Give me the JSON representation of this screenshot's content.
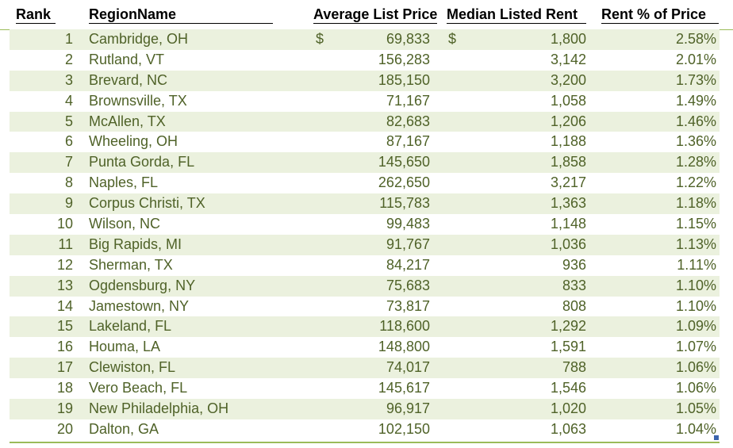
{
  "table": {
    "headers": {
      "rank": "Rank",
      "region": "RegionName",
      "price": "Average List Price",
      "rent": "Median Listed Rent",
      "pct": "Rent % of Price"
    },
    "currency_symbol": "$",
    "rows": [
      {
        "rank": "1",
        "region": "Cambridge, OH",
        "price": "69,833",
        "rent": "1,800",
        "pct": "2.58%"
      },
      {
        "rank": "2",
        "region": "Rutland, VT",
        "price": "156,283",
        "rent": "3,142",
        "pct": "2.01%"
      },
      {
        "rank": "3",
        "region": "Brevard, NC",
        "price": "185,150",
        "rent": "3,200",
        "pct": "1.73%"
      },
      {
        "rank": "4",
        "region": "Brownsville, TX",
        "price": "71,167",
        "rent": "1,058",
        "pct": "1.49%"
      },
      {
        "rank": "5",
        "region": "McAllen, TX",
        "price": "82,683",
        "rent": "1,206",
        "pct": "1.46%"
      },
      {
        "rank": "6",
        "region": "Wheeling, OH",
        "price": "87,167",
        "rent": "1,188",
        "pct": "1.36%"
      },
      {
        "rank": "7",
        "region": "Punta Gorda, FL",
        "price": "145,650",
        "rent": "1,858",
        "pct": "1.28%"
      },
      {
        "rank": "8",
        "region": "Naples, FL",
        "price": "262,650",
        "rent": "3,217",
        "pct": "1.22%"
      },
      {
        "rank": "9",
        "region": "Corpus Christi, TX",
        "price": "115,783",
        "rent": "1,363",
        "pct": "1.18%"
      },
      {
        "rank": "10",
        "region": "Wilson, NC",
        "price": "99,483",
        "rent": "1,148",
        "pct": "1.15%"
      },
      {
        "rank": "11",
        "region": "Big Rapids, MI",
        "price": "91,767",
        "rent": "1,036",
        "pct": "1.13%"
      },
      {
        "rank": "12",
        "region": "Sherman, TX",
        "price": "84,217",
        "rent": "936",
        "pct": "1.11%"
      },
      {
        "rank": "13",
        "region": "Ogdensburg, NY",
        "price": "75,683",
        "rent": "833",
        "pct": "1.10%"
      },
      {
        "rank": "14",
        "region": "Jamestown, NY",
        "price": "73,817",
        "rent": "808",
        "pct": "1.10%"
      },
      {
        "rank": "15",
        "region": "Lakeland, FL",
        "price": "118,600",
        "rent": "1,292",
        "pct": "1.09%"
      },
      {
        "rank": "16",
        "region": "Houma, LA",
        "price": "148,800",
        "rent": "1,591",
        "pct": "1.07%"
      },
      {
        "rank": "17",
        "region": "Clewiston, FL",
        "price": "74,017",
        "rent": "788",
        "pct": "1.06%"
      },
      {
        "rank": "18",
        "region": "Vero Beach, FL",
        "price": "145,617",
        "rent": "1,546",
        "pct": "1.06%"
      },
      {
        "rank": "19",
        "region": "New Philadelphia, OH",
        "price": "96,917",
        "rent": "1,020",
        "pct": "1.05%"
      },
      {
        "rank": "20",
        "region": "Dalton, GA",
        "price": "102,150",
        "rent": "1,063",
        "pct": "1.04%"
      }
    ]
  },
  "colors": {
    "text": "#4f6228",
    "band": "#ebf1de",
    "rule": "#9bbb59",
    "header_text": "#000000"
  }
}
